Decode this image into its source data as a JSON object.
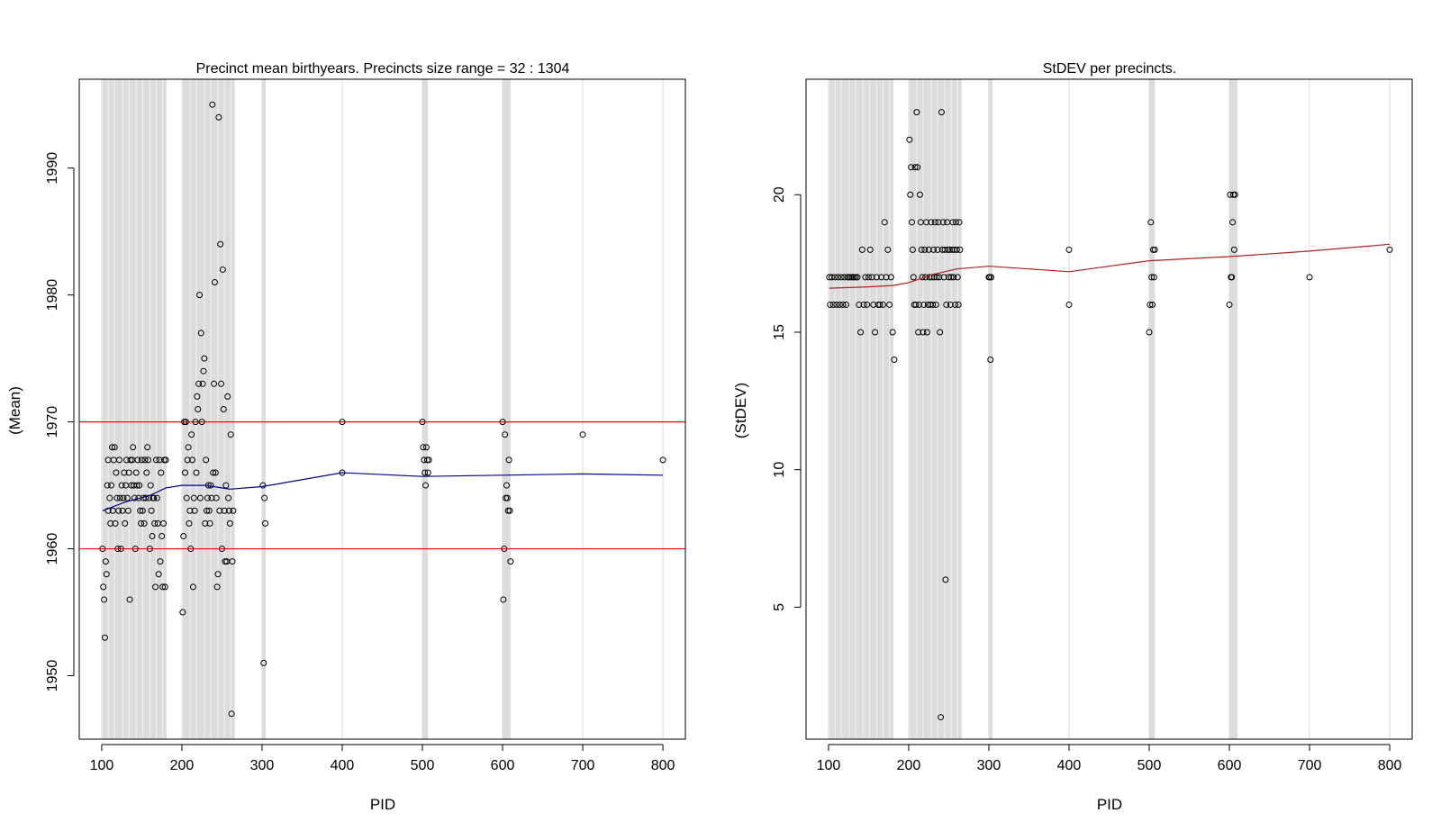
{
  "chart_data": [
    {
      "type": "scatter",
      "title": "Precinct mean birthyears. Precincts size range = 32 : 1304",
      "xlabel": "PID",
      "ylabel": "(Mean)",
      "xlim": [
        72,
        828
      ],
      "ylim": [
        1945,
        1997
      ],
      "xticks": [
        100,
        200,
        300,
        400,
        500,
        600,
        700,
        800
      ],
      "yticks": [
        1950,
        1960,
        1970,
        1980,
        1990
      ],
      "xtick_labels": [
        "100",
        "200",
        "300",
        "400",
        "500",
        "600",
        "700",
        "800"
      ],
      "ytick_labels": [
        "1950",
        "1960",
        "1970",
        "1980",
        "1990"
      ],
      "grid": "vertical",
      "colors": {
        "points": "#000000",
        "smooth": "#00008b",
        "hline": "#ff0000",
        "band": "#dcdcdc",
        "vgrid": "#e3e3e3"
      },
      "hlines": [
        1960,
        1970
      ],
      "vgrid": [
        100,
        200,
        300,
        400,
        500,
        600,
        700,
        800
      ],
      "bands": [
        [
          101,
          181
        ],
        [
          201,
          266
        ],
        [
          300,
          303
        ],
        [
          500,
          507
        ],
        [
          600,
          610
        ]
      ],
      "band_lines": [
        108,
        116,
        126,
        134,
        143,
        151,
        160,
        168,
        176,
        210,
        218,
        228,
        236,
        245,
        253,
        261
      ],
      "points": [
        [
          101,
          1960
        ],
        [
          102,
          1957
        ],
        [
          103,
          1956
        ],
        [
          104,
          1953
        ],
        [
          105,
          1959
        ],
        [
          106,
          1958
        ],
        [
          107,
          1965
        ],
        [
          108,
          1967
        ],
        [
          108,
          1963
        ],
        [
          110,
          1964
        ],
        [
          111,
          1962
        ],
        [
          112,
          1965
        ],
        [
          113,
          1968
        ],
        [
          114,
          1963
        ],
        [
          115,
          1967
        ],
        [
          116,
          1968
        ],
        [
          117,
          1962
        ],
        [
          118,
          1966
        ],
        [
          119,
          1964
        ],
        [
          120,
          1960
        ],
        [
          121,
          1963
        ],
        [
          122,
          1967
        ],
        [
          123,
          1964
        ],
        [
          124,
          1960
        ],
        [
          125,
          1965
        ],
        [
          126,
          1963
        ],
        [
          127,
          1964
        ],
        [
          128,
          1966
        ],
        [
          129,
          1962
        ],
        [
          130,
          1965
        ],
        [
          131,
          1967
        ],
        [
          132,
          1964
        ],
        [
          133,
          1963
        ],
        [
          134,
          1966
        ],
        [
          135,
          1956
        ],
        [
          136,
          1967
        ],
        [
          137,
          1965
        ],
        [
          138,
          1967
        ],
        [
          139,
          1968
        ],
        [
          140,
          1965
        ],
        [
          141,
          1964
        ],
        [
          142,
          1960
        ],
        [
          143,
          1966
        ],
        [
          144,
          1965
        ],
        [
          145,
          1967
        ],
        [
          146,
          1964
        ],
        [
          147,
          1965
        ],
        [
          148,
          1963
        ],
        [
          149,
          1962
        ],
        [
          150,
          1967
        ],
        [
          151,
          1963
        ],
        [
          152,
          1964
        ],
        [
          153,
          1962
        ],
        [
          154,
          1967
        ],
        [
          155,
          1964
        ],
        [
          156,
          1966
        ],
        [
          157,
          1968
        ],
        [
          158,
          1967
        ],
        [
          159,
          1964
        ],
        [
          160,
          1960
        ],
        [
          161,
          1965
        ],
        [
          162,
          1963
        ],
        [
          163,
          1961
        ],
        [
          164,
          1964
        ],
        [
          165,
          1964
        ],
        [
          166,
          1962
        ],
        [
          167,
          1957
        ],
        [
          168,
          1967
        ],
        [
          169,
          1964
        ],
        [
          170,
          1962
        ],
        [
          171,
          1958
        ],
        [
          172,
          1967
        ],
        [
          173,
          1959
        ],
        [
          174,
          1966
        ],
        [
          175,
          1961
        ],
        [
          176,
          1957
        ],
        [
          177,
          1962
        ],
        [
          178,
          1967
        ],
        [
          179,
          1957
        ],
        [
          180,
          1967
        ],
        [
          201,
          1955
        ],
        [
          202,
          1961
        ],
        [
          203,
          1970
        ],
        [
          204,
          1966
        ],
        [
          205,
          1970
        ],
        [
          206,
          1964
        ],
        [
          207,
          1967
        ],
        [
          208,
          1968
        ],
        [
          209,
          1962
        ],
        [
          210,
          1963
        ],
        [
          211,
          1960
        ],
        [
          212,
          1969
        ],
        [
          213,
          1967
        ],
        [
          214,
          1957
        ],
        [
          215,
          1964
        ],
        [
          216,
          1963
        ],
        [
          217,
          1970
        ],
        [
          218,
          1966
        ],
        [
          219,
          1972
        ],
        [
          220,
          1971
        ],
        [
          221,
          1973
        ],
        [
          222,
          1980
        ],
        [
          223,
          1964
        ],
        [
          224,
          1977
        ],
        [
          225,
          1970
        ],
        [
          226,
          1973
        ],
        [
          227,
          1974
        ],
        [
          228,
          1975
        ],
        [
          229,
          1962
        ],
        [
          230,
          1967
        ],
        [
          231,
          1963
        ],
        [
          232,
          1964
        ],
        [
          233,
          1965
        ],
        [
          234,
          1963
        ],
        [
          235,
          1962
        ],
        [
          236,
          1965
        ],
        [
          237,
          1964
        ],
        [
          238,
          1995
        ],
        [
          239,
          1966
        ],
        [
          240,
          1973
        ],
        [
          241,
          1981
        ],
        [
          242,
          1966
        ],
        [
          243,
          1964
        ],
        [
          244,
          1957
        ],
        [
          245,
          1958
        ],
        [
          246,
          1994
        ],
        [
          247,
          1963
        ],
        [
          248,
          1984
        ],
        [
          249,
          1973
        ],
        [
          250,
          1960
        ],
        [
          251,
          1982
        ],
        [
          252,
          1971
        ],
        [
          253,
          1963
        ],
        [
          254,
          1959
        ],
        [
          255,
          1965
        ],
        [
          256,
          1959
        ],
        [
          257,
          1972
        ],
        [
          258,
          1964
        ],
        [
          259,
          1963
        ],
        [
          260,
          1962
        ],
        [
          261,
          1969
        ],
        [
          262,
          1947
        ],
        [
          263,
          1959
        ],
        [
          264,
          1963
        ],
        [
          301,
          1965
        ],
        [
          302,
          1951
        ],
        [
          303,
          1964
        ],
        [
          304,
          1962
        ],
        [
          400,
          1970
        ],
        [
          400,
          1966
        ],
        [
          500,
          1970
        ],
        [
          501,
          1968
        ],
        [
          502,
          1967
        ],
        [
          503,
          1966
        ],
        [
          504,
          1965
        ],
        [
          505,
          1968
        ],
        [
          506,
          1967
        ],
        [
          507,
          1966
        ],
        [
          508,
          1967
        ],
        [
          600,
          1970
        ],
        [
          601,
          1956
        ],
        [
          602,
          1960
        ],
        [
          603,
          1969
        ],
        [
          604,
          1964
        ],
        [
          605,
          1965
        ],
        [
          606,
          1964
        ],
        [
          607,
          1963
        ],
        [
          608,
          1967
        ],
        [
          609,
          1963
        ],
        [
          610,
          1959
        ],
        [
          700,
          1969
        ],
        [
          800,
          1967
        ]
      ],
      "smooth": [
        [
          101,
          1963
        ],
        [
          130,
          1963.7
        ],
        [
          160,
          1964.2
        ],
        [
          180,
          1964.8
        ],
        [
          200,
          1965
        ],
        [
          230,
          1965
        ],
        [
          260,
          1964.7
        ],
        [
          300,
          1964.9
        ],
        [
          400,
          1966
        ],
        [
          500,
          1965.7
        ],
        [
          600,
          1965.8
        ],
        [
          700,
          1965.9
        ],
        [
          800,
          1965.8
        ]
      ]
    },
    {
      "type": "scatter",
      "title": "StDEV per precincts.",
      "xlabel": "PID",
      "ylabel": "(StDEV)",
      "xlim": [
        72,
        828
      ],
      "ylim": [
        0.2,
        24.2
      ],
      "xticks": [
        100,
        200,
        300,
        400,
        500,
        600,
        700,
        800
      ],
      "yticks": [
        5,
        10,
        15,
        20
      ],
      "xtick_labels": [
        "100",
        "200",
        "300",
        "400",
        "500",
        "600",
        "700",
        "800"
      ],
      "ytick_labels": [
        "5",
        "10",
        "15",
        "20"
      ],
      "grid": "vertical",
      "colors": {
        "points": "#000000",
        "smooth": "#b22222",
        "band": "#dcdcdc",
        "vgrid": "#e3e3e3"
      },
      "hlines": [],
      "vgrid": [
        100,
        200,
        300,
        400,
        500,
        600,
        700,
        800
      ],
      "bands": [
        [
          101,
          181
        ],
        [
          201,
          266
        ],
        [
          300,
          303
        ],
        [
          500,
          507
        ],
        [
          600,
          610
        ]
      ],
      "band_lines": [
        108,
        116,
        126,
        134,
        143,
        151,
        160,
        168,
        176,
        210,
        218,
        228,
        236,
        245,
        253,
        261
      ],
      "points": [
        [
          101,
          17
        ],
        [
          102,
          16
        ],
        [
          104,
          17
        ],
        [
          106,
          16
        ],
        [
          108,
          17
        ],
        [
          110,
          16
        ],
        [
          112,
          17
        ],
        [
          114,
          16
        ],
        [
          116,
          17
        ],
        [
          118,
          16
        ],
        [
          120,
          17
        ],
        [
          122,
          16
        ],
        [
          124,
          17
        ],
        [
          126,
          17
        ],
        [
          128,
          17
        ],
        [
          130,
          17
        ],
        [
          132,
          17
        ],
        [
          134,
          17
        ],
        [
          136,
          17
        ],
        [
          138,
          16
        ],
        [
          140,
          15
        ],
        [
          142,
          18
        ],
        [
          144,
          16
        ],
        [
          146,
          17
        ],
        [
          148,
          16
        ],
        [
          150,
          17
        ],
        [
          152,
          18
        ],
        [
          154,
          17
        ],
        [
          156,
          16
        ],
        [
          158,
          15
        ],
        [
          160,
          17
        ],
        [
          162,
          16
        ],
        [
          164,
          16
        ],
        [
          166,
          17
        ],
        [
          168,
          16
        ],
        [
          170,
          19
        ],
        [
          172,
          17
        ],
        [
          174,
          18
        ],
        [
          176,
          16
        ],
        [
          178,
          17
        ],
        [
          180,
          15
        ],
        [
          182,
          14
        ],
        [
          201,
          22
        ],
        [
          202,
          20
        ],
        [
          203,
          21
        ],
        [
          204,
          19
        ],
        [
          205,
          18
        ],
        [
          206,
          17
        ],
        [
          207,
          16
        ],
        [
          208,
          21
        ],
        [
          209,
          16
        ],
        [
          210,
          23
        ],
        [
          211,
          21
        ],
        [
          212,
          15
        ],
        [
          213,
          16
        ],
        [
          214,
          20
        ],
        [
          215,
          19
        ],
        [
          216,
          18
        ],
        [
          217,
          17
        ],
        [
          218,
          15
        ],
        [
          219,
          16
        ],
        [
          220,
          18
        ],
        [
          221,
          17
        ],
        [
          222,
          19
        ],
        [
          223,
          15
        ],
        [
          224,
          16
        ],
        [
          225,
          18
        ],
        [
          226,
          17
        ],
        [
          227,
          16
        ],
        [
          228,
          19
        ],
        [
          229,
          17
        ],
        [
          230,
          16
        ],
        [
          231,
          18
        ],
        [
          232,
          17
        ],
        [
          233,
          19
        ],
        [
          234,
          16
        ],
        [
          235,
          17
        ],
        [
          236,
          18
        ],
        [
          237,
          19
        ],
        [
          238,
          17
        ],
        [
          239,
          15
        ],
        [
          240,
          1
        ],
        [
          241,
          23
        ],
        [
          242,
          18
        ],
        [
          243,
          19
        ],
        [
          244,
          17
        ],
        [
          245,
          18
        ],
        [
          246,
          6
        ],
        [
          247,
          16
        ],
        [
          248,
          19
        ],
        [
          249,
          18
        ],
        [
          250,
          17
        ],
        [
          251,
          18
        ],
        [
          252,
          16
        ],
        [
          253,
          17
        ],
        [
          254,
          18
        ],
        [
          255,
          19
        ],
        [
          256,
          17
        ],
        [
          257,
          18
        ],
        [
          258,
          16
        ],
        [
          259,
          19
        ],
        [
          260,
          18
        ],
        [
          261,
          17
        ],
        [
          262,
          16
        ],
        [
          263,
          19
        ],
        [
          264,
          18
        ],
        [
          300,
          17
        ],
        [
          301,
          17
        ],
        [
          302,
          14
        ],
        [
          303,
          17
        ],
        [
          400,
          18
        ],
        [
          400,
          16
        ],
        [
          500,
          15
        ],
        [
          501,
          16
        ],
        [
          502,
          19
        ],
        [
          503,
          17
        ],
        [
          504,
          16
        ],
        [
          505,
          18
        ],
        [
          506,
          17
        ],
        [
          507,
          18
        ],
        [
          600,
          16
        ],
        [
          601,
          20
        ],
        [
          602,
          17
        ],
        [
          603,
          17
        ],
        [
          604,
          19
        ],
        [
          605,
          20
        ],
        [
          606,
          18
        ],
        [
          607,
          20
        ],
        [
          700,
          17
        ],
        [
          800,
          18
        ]
      ],
      "smooth": [
        [
          101,
          16.6
        ],
        [
          150,
          16.65
        ],
        [
          180,
          16.7
        ],
        [
          200,
          16.8
        ],
        [
          230,
          17.1
        ],
        [
          260,
          17.3
        ],
        [
          300,
          17.4
        ],
        [
          350,
          17.3
        ],
        [
          400,
          17.2
        ],
        [
          500,
          17.6
        ],
        [
          600,
          17.75
        ],
        [
          700,
          17.95
        ],
        [
          800,
          18.2
        ]
      ]
    }
  ]
}
